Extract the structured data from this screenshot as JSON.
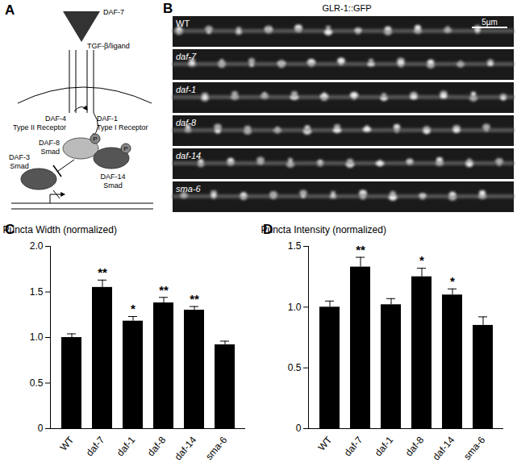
{
  "panels": {
    "A": {
      "label": "A",
      "ligand": [
        "DAF-7",
        "TGF-β/ligand"
      ],
      "receptors": [
        {
          "name": "DAF-4",
          "role": "Type II Receptor"
        },
        {
          "name": "DAF-1",
          "role": "Type I Receptor"
        }
      ],
      "smads": [
        {
          "name": "DAF-8",
          "role": "Smad",
          "phospho": "P"
        },
        {
          "name": "DAF-14",
          "role": "Smad",
          "phospho": "P"
        },
        {
          "name": "DAF-3",
          "role": "Smad"
        }
      ]
    },
    "B": {
      "label": "B",
      "title": "GLR-1::GFP",
      "scale_bar": "5µm",
      "rows": [
        "WT",
        "daf-7",
        "daf-1",
        "daf-8",
        "daf-14",
        "sma-6"
      ]
    }
  },
  "chart_data": [
    {
      "type": "bar",
      "title": "C",
      "y_label": "Puncta Width (normalized)",
      "categories": [
        "WT",
        "daf-7",
        "daf-1",
        "daf-8",
        "daf-14",
        "sma-6"
      ],
      "values": [
        1.0,
        1.55,
        1.18,
        1.38,
        1.3,
        0.92
      ],
      "errors": [
        0.04,
        0.08,
        0.05,
        0.06,
        0.04,
        0.04
      ],
      "annotations": [
        null,
        "**",
        "*",
        "**",
        "**",
        null
      ],
      "color": "#000000",
      "ylim": [
        0,
        2.0
      ],
      "yticks": [
        0,
        0.5,
        {
          "value": 1.0,
          "label": "1.0"
        },
        1.5,
        {
          "value": 2.0,
          "label": "2.0"
        }
      ],
      "grid": false
    },
    {
      "type": "bar",
      "title": "D",
      "y_label": "Puncta Intensity (normalized)",
      "categories": [
        "WT",
        "daf-7",
        "daf-1",
        "daf-8",
        "daf-14",
        "sma-6"
      ],
      "values": [
        1.0,
        1.33,
        1.02,
        1.25,
        1.1,
        0.85
      ],
      "errors": [
        0.05,
        0.08,
        0.05,
        0.07,
        0.05,
        0.07
      ],
      "annotations": [
        null,
        "**",
        null,
        "*",
        "*",
        null
      ],
      "color": "#000000",
      "ylim": [
        0,
        1.5
      ],
      "yticks": [
        0,
        0.5,
        {
          "value": 1.0,
          "label": "1.0"
        },
        1.5
      ],
      "grid": false
    }
  ]
}
